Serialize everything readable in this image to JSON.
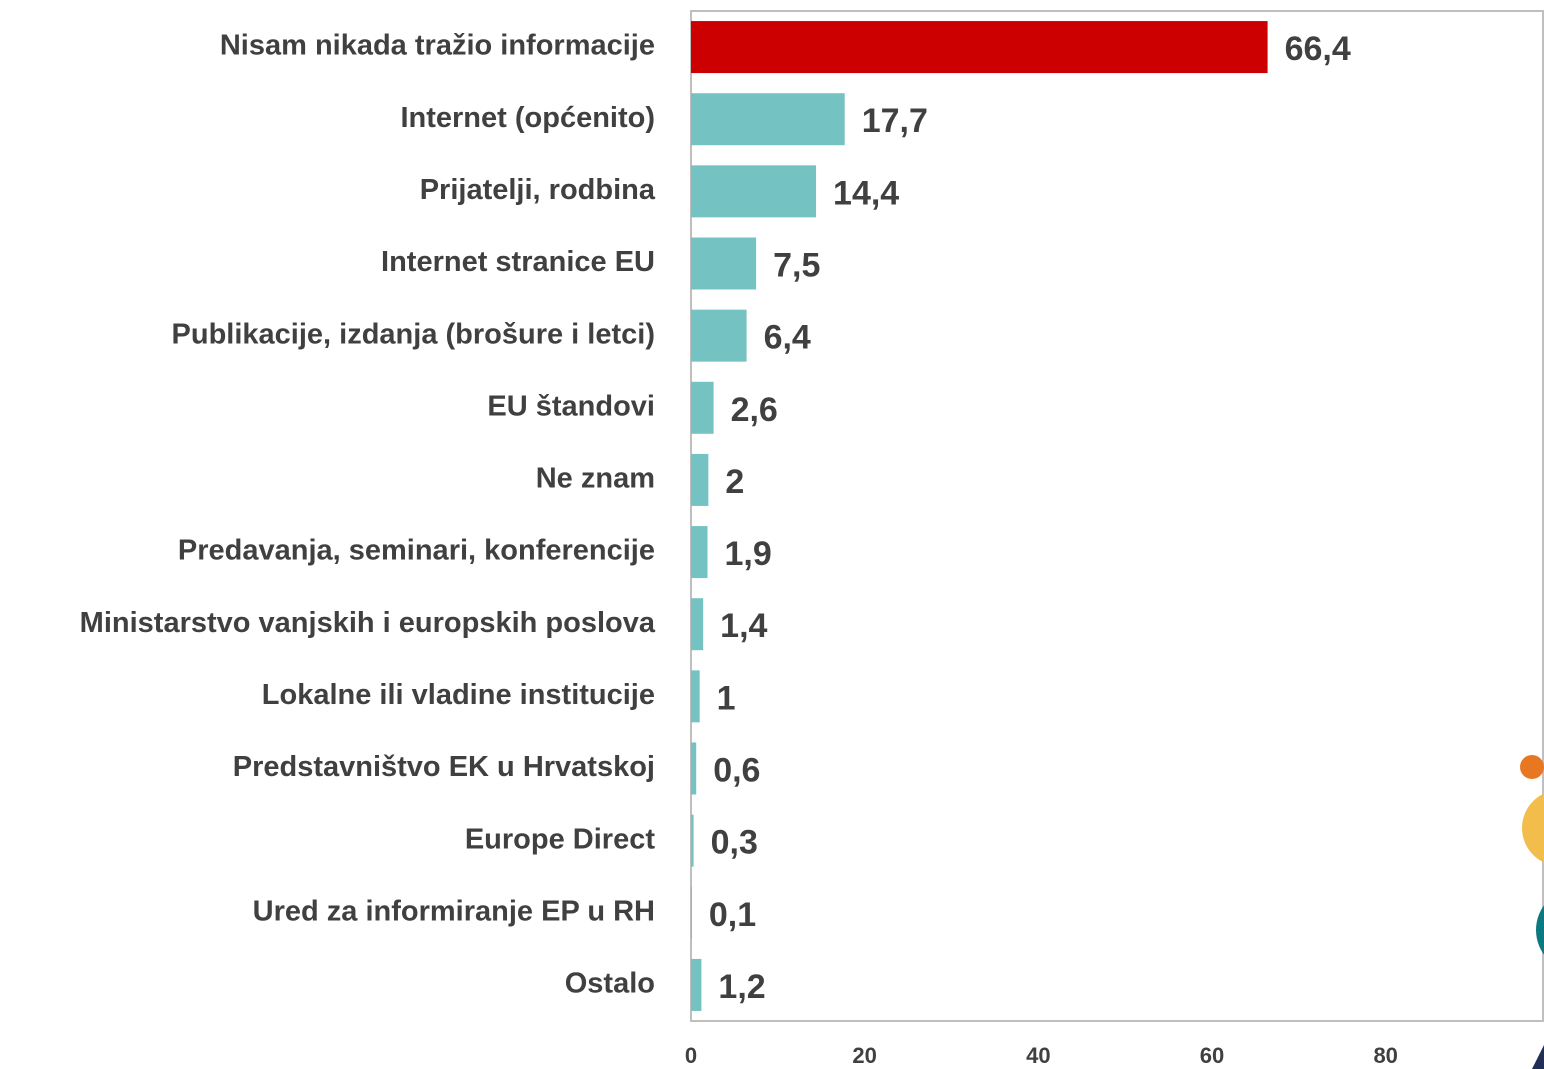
{
  "chart_data": {
    "type": "bar",
    "orientation": "horizontal",
    "categories": [
      "Nisam nikada tražio informacije",
      "Internet (općenito)",
      "Prijatelji, rodbina",
      "Internet stranice EU",
      "Publikacije, izdanja (brošure i letci)",
      "EU štandovi",
      "Ne znam",
      "Predavanja, seminari, konferencije",
      "Ministarstvo vanjskih i europskih poslova",
      "Lokalne ili vladine institucije",
      "Predstavništvo EK u Hrvatskoj",
      "Europe Direct",
      "Ured za informiranje EP u RH",
      "Ostalo"
    ],
    "values": [
      66.4,
      17.7,
      14.4,
      7.5,
      6.4,
      2.6,
      2,
      1.9,
      1.4,
      1,
      0.6,
      0.3,
      0.1,
      1.2
    ],
    "value_labels": [
      "66,4",
      "17,7",
      "14,4",
      "7,5",
      "6,4",
      "2,6",
      "2",
      "1,9",
      "1,4",
      "1",
      "0,6",
      "0,3",
      "0,1",
      "1,2"
    ],
    "colors": [
      "#cc0000",
      "#75c2c2",
      "#75c2c2",
      "#75c2c2",
      "#75c2c2",
      "#75c2c2",
      "#75c2c2",
      "#75c2c2",
      "#75c2c2",
      "#75c2c2",
      "#75c2c2",
      "#75c2c2",
      "#75c2c2",
      "#75c2c2"
    ],
    "xlim": [
      0,
      98
    ],
    "xticks": [
      0,
      20,
      40,
      60,
      80
    ],
    "grid": false
  }
}
